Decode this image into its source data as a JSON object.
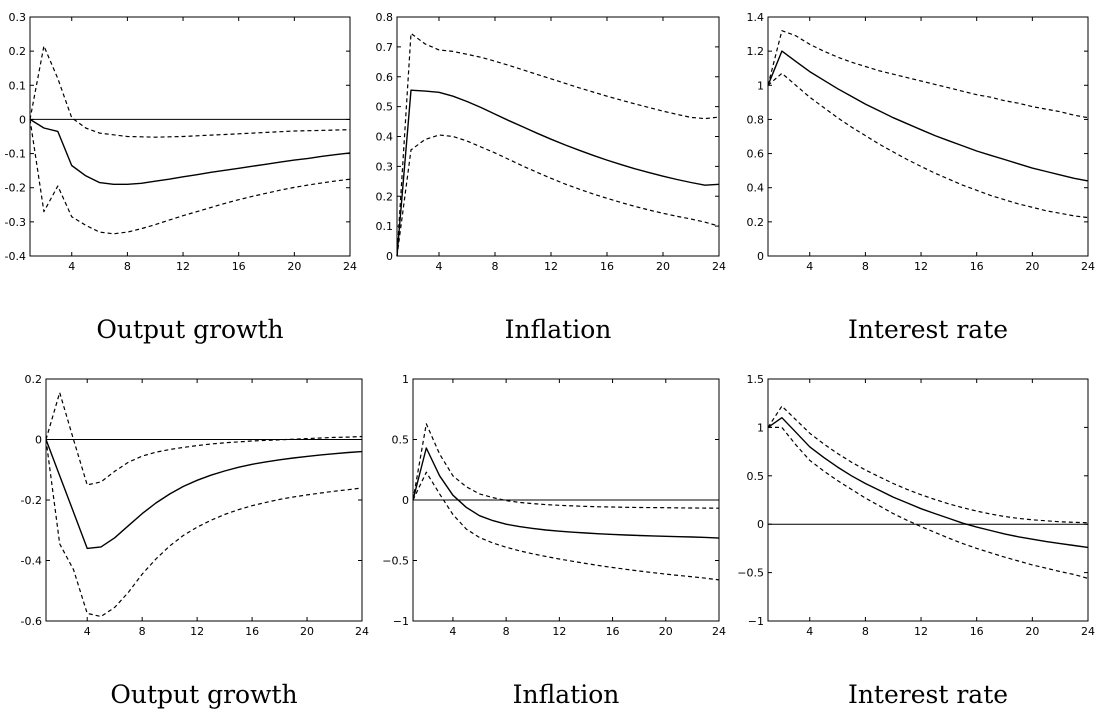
{
  "chart_data": [
    {
      "type": "line",
      "title": "Output growth",
      "xlim": [
        1,
        24
      ],
      "ylim": [
        -0.4,
        0.3
      ],
      "xticks": [
        4,
        8,
        12,
        16,
        20,
        24
      ],
      "yticks": [
        -0.4,
        -0.3,
        -0.2,
        -0.1,
        0,
        0.1,
        0.2,
        0.3
      ],
      "ytick_labels": [
        "-0.4",
        "-0.3",
        "-0.2",
        "-0.1",
        "0",
        "0.1",
        "0.2",
        "0.3"
      ],
      "zero_line": true,
      "x": [
        1,
        2,
        3,
        4,
        5,
        6,
        7,
        8,
        9,
        10,
        11,
        12,
        13,
        14,
        15,
        16,
        17,
        18,
        19,
        20,
        21,
        22,
        23,
        24
      ],
      "series": [
        {
          "style": "solid",
          "values": [
            0,
            -0.025,
            -0.035,
            -0.135,
            -0.165,
            -0.185,
            -0.19,
            -0.19,
            -0.187,
            -0.181,
            -0.175,
            -0.168,
            -0.162,
            -0.155,
            -0.149,
            -0.143,
            -0.137,
            -0.131,
            -0.125,
            -0.119,
            -0.114,
            -0.108,
            -0.103,
            -0.098
          ]
        },
        {
          "style": "dashed",
          "values": [
            0,
            0.215,
            0.12,
            0.005,
            -0.025,
            -0.04,
            -0.045,
            -0.05,
            -0.051,
            -0.052,
            -0.051,
            -0.05,
            -0.048,
            -0.046,
            -0.044,
            -0.042,
            -0.04,
            -0.038,
            -0.036,
            -0.034,
            -0.033,
            -0.032,
            -0.031,
            -0.03
          ]
        },
        {
          "style": "dashed",
          "values": [
            0,
            -0.27,
            -0.195,
            -0.285,
            -0.31,
            -0.33,
            -0.335,
            -0.33,
            -0.32,
            -0.308,
            -0.295,
            -0.282,
            -0.27,
            -0.258,
            -0.246,
            -0.235,
            -0.225,
            -0.216,
            -0.207,
            -0.199,
            -0.192,
            -0.186,
            -0.18,
            -0.175
          ]
        }
      ]
    },
    {
      "type": "line",
      "title": "Inflation",
      "xlim": [
        1,
        24
      ],
      "ylim": [
        0,
        0.8
      ],
      "xticks": [
        4,
        8,
        12,
        16,
        20,
        24
      ],
      "yticks": [
        0,
        0.1,
        0.2,
        0.3,
        0.4,
        0.5,
        0.6,
        0.7,
        0.8
      ],
      "ytick_labels": [
        "0",
        "0.1",
        "0.2",
        "0.3",
        "0.4",
        "0.5",
        "0.6",
        "0.7",
        "0.8"
      ],
      "zero_line": false,
      "x": [
        1,
        2,
        3,
        4,
        5,
        6,
        7,
        8,
        9,
        10,
        11,
        12,
        13,
        14,
        15,
        16,
        17,
        18,
        19,
        20,
        21,
        22,
        23,
        24
      ],
      "series": [
        {
          "style": "solid",
          "values": [
            0,
            0.555,
            0.552,
            0.548,
            0.535,
            0.517,
            0.497,
            0.475,
            0.453,
            0.432,
            0.411,
            0.391,
            0.372,
            0.354,
            0.337,
            0.321,
            0.306,
            0.292,
            0.279,
            0.267,
            0.256,
            0.246,
            0.237,
            0.24
          ]
        },
        {
          "style": "dashed",
          "values": [
            0,
            0.745,
            0.71,
            0.69,
            0.685,
            0.675,
            0.665,
            0.652,
            0.638,
            0.623,
            0.608,
            0.593,
            0.578,
            0.563,
            0.549,
            0.535,
            0.522,
            0.509,
            0.497,
            0.485,
            0.474,
            0.464,
            0.46,
            0.465
          ]
        },
        {
          "style": "dashed",
          "values": [
            0,
            0.355,
            0.39,
            0.405,
            0.4,
            0.385,
            0.365,
            0.345,
            0.323,
            0.301,
            0.28,
            0.26,
            0.241,
            0.224,
            0.208,
            0.193,
            0.179,
            0.166,
            0.154,
            0.143,
            0.133,
            0.124,
            0.113,
            0.1
          ]
        }
      ]
    },
    {
      "type": "line",
      "title": "Interest rate",
      "xlim": [
        1,
        24
      ],
      "ylim": [
        0,
        1.4
      ],
      "xticks": [
        4,
        8,
        12,
        16,
        20,
        24
      ],
      "yticks": [
        0,
        0.2,
        0.4,
        0.6,
        0.8,
        1,
        1.2,
        1.4
      ],
      "ytick_labels": [
        "0",
        "0.2",
        "0.4",
        "0.6",
        "0.8",
        "1",
        "1.2",
        "1.4"
      ],
      "zero_line": false,
      "x": [
        1,
        2,
        3,
        4,
        5,
        6,
        7,
        8,
        9,
        10,
        11,
        12,
        13,
        14,
        15,
        16,
        17,
        18,
        19,
        20,
        21,
        22,
        23,
        24
      ],
      "series": [
        {
          "style": "solid",
          "values": [
            1,
            1.2,
            1.14,
            1.08,
            1.03,
            0.98,
            0.935,
            0.89,
            0.85,
            0.81,
            0.775,
            0.74,
            0.705,
            0.675,
            0.645,
            0.615,
            0.59,
            0.565,
            0.54,
            0.515,
            0.495,
            0.475,
            0.455,
            0.44
          ]
        },
        {
          "style": "dashed",
          "values": [
            1,
            1.32,
            1.29,
            1.24,
            1.2,
            1.165,
            1.135,
            1.11,
            1.085,
            1.065,
            1.045,
            1.025,
            1.005,
            0.985,
            0.965,
            0.945,
            0.93,
            0.91,
            0.895,
            0.875,
            0.86,
            0.845,
            0.825,
            0.81
          ]
        },
        {
          "style": "dashed",
          "values": [
            1,
            1.07,
            1.0,
            0.93,
            0.87,
            0.81,
            0.755,
            0.705,
            0.655,
            0.61,
            0.565,
            0.525,
            0.485,
            0.45,
            0.415,
            0.385,
            0.355,
            0.33,
            0.305,
            0.285,
            0.265,
            0.25,
            0.235,
            0.225
          ]
        }
      ]
    },
    {
      "type": "line",
      "title": "Output growth",
      "xlim": [
        1,
        24
      ],
      "ylim": [
        -0.6,
        0.2
      ],
      "xticks": [
        4,
        8,
        12,
        16,
        20,
        24
      ],
      "yticks": [
        -0.6,
        -0.4,
        -0.2,
        0,
        0.2
      ],
      "ytick_labels": [
        "-0.6",
        "-0.4",
        "-0.2",
        "0",
        "0.2"
      ],
      "zero_line": true,
      "x": [
        1,
        2,
        3,
        4,
        5,
        6,
        7,
        8,
        9,
        10,
        11,
        12,
        13,
        14,
        15,
        16,
        17,
        18,
        19,
        20,
        21,
        22,
        23,
        24
      ],
      "series": [
        {
          "style": "solid",
          "values": [
            0,
            -0.12,
            -0.24,
            -0.36,
            -0.355,
            -0.325,
            -0.285,
            -0.245,
            -0.21,
            -0.18,
            -0.155,
            -0.135,
            -0.118,
            -0.104,
            -0.092,
            -0.082,
            -0.074,
            -0.067,
            -0.061,
            -0.056,
            -0.051,
            -0.047,
            -0.043,
            -0.04
          ]
        },
        {
          "style": "dashed",
          "values": [
            0,
            0.155,
            0.0,
            -0.15,
            -0.14,
            -0.105,
            -0.075,
            -0.055,
            -0.042,
            -0.033,
            -0.026,
            -0.02,
            -0.015,
            -0.011,
            -0.008,
            -0.005,
            -0.003,
            -0.001,
            0.001,
            0.003,
            0.005,
            0.007,
            0.008,
            0.01
          ]
        },
        {
          "style": "dashed",
          "values": [
            0,
            -0.345,
            -0.43,
            -0.575,
            -0.585,
            -0.555,
            -0.505,
            -0.445,
            -0.395,
            -0.352,
            -0.317,
            -0.29,
            -0.267,
            -0.248,
            -0.232,
            -0.219,
            -0.208,
            -0.198,
            -0.19,
            -0.183,
            -0.177,
            -0.171,
            -0.166,
            -0.16
          ]
        }
      ]
    },
    {
      "type": "line",
      "title": "Inflation",
      "xlim": [
        1,
        24
      ],
      "ylim": [
        -1,
        1
      ],
      "xticks": [
        4,
        8,
        12,
        16,
        20,
        24
      ],
      "yticks": [
        -1,
        -0.5,
        0,
        0.5,
        1
      ],
      "ytick_labels": [
        "−1",
        "−0.5",
        "0",
        "0.5",
        "1"
      ],
      "zero_line": true,
      "x": [
        1,
        2,
        3,
        4,
        5,
        6,
        7,
        8,
        9,
        10,
        11,
        12,
        13,
        14,
        15,
        16,
        17,
        18,
        19,
        20,
        21,
        22,
        23,
        24
      ],
      "series": [
        {
          "style": "solid",
          "values": [
            0,
            0.43,
            0.2,
            0.04,
            -0.06,
            -0.13,
            -0.17,
            -0.2,
            -0.22,
            -0.235,
            -0.248,
            -0.258,
            -0.266,
            -0.273,
            -0.279,
            -0.284,
            -0.289,
            -0.293,
            -0.297,
            -0.3,
            -0.303,
            -0.306,
            -0.309,
            -0.315
          ]
        },
        {
          "style": "dashed",
          "values": [
            0,
            0.63,
            0.38,
            0.2,
            0.11,
            0.05,
            0.02,
            -0.005,
            -0.02,
            -0.03,
            -0.038,
            -0.044,
            -0.049,
            -0.053,
            -0.056,
            -0.058,
            -0.06,
            -0.062,
            -0.063,
            -0.064,
            -0.065,
            -0.066,
            -0.067,
            -0.068
          ]
        },
        {
          "style": "dashed",
          "values": [
            0,
            0.23,
            0.05,
            -0.12,
            -0.24,
            -0.31,
            -0.355,
            -0.39,
            -0.42,
            -0.445,
            -0.467,
            -0.488,
            -0.507,
            -0.525,
            -0.542,
            -0.558,
            -0.573,
            -0.587,
            -0.6,
            -0.612,
            -0.624,
            -0.635,
            -0.646,
            -0.66
          ]
        }
      ]
    },
    {
      "type": "line",
      "title": "Interest rate",
      "xlim": [
        1,
        24
      ],
      "ylim": [
        -1,
        1.5
      ],
      "xticks": [
        4,
        8,
        12,
        16,
        20,
        24
      ],
      "yticks": [
        -1,
        -0.5,
        0,
        0.5,
        1,
        1.5
      ],
      "ytick_labels": [
        "−1",
        "−0.5",
        "0",
        "0.5",
        "1",
        "1.5"
      ],
      "zero_line": true,
      "x": [
        1,
        2,
        3,
        4,
        5,
        6,
        7,
        8,
        9,
        10,
        11,
        12,
        13,
        14,
        15,
        16,
        17,
        18,
        19,
        20,
        21,
        22,
        23,
        24
      ],
      "series": [
        {
          "style": "solid",
          "values": [
            1,
            1.1,
            0.95,
            0.8,
            0.69,
            0.59,
            0.5,
            0.42,
            0.35,
            0.28,
            0.22,
            0.16,
            0.11,
            0.06,
            0.01,
            -0.03,
            -0.065,
            -0.1,
            -0.13,
            -0.155,
            -0.18,
            -0.2,
            -0.22,
            -0.24
          ]
        },
        {
          "style": "dashed",
          "values": [
            1,
            1.22,
            1.08,
            0.94,
            0.83,
            0.73,
            0.64,
            0.56,
            0.49,
            0.42,
            0.36,
            0.305,
            0.255,
            0.21,
            0.17,
            0.135,
            0.105,
            0.08,
            0.06,
            0.045,
            0.035,
            0.025,
            0.02,
            0.015
          ]
        },
        {
          "style": "dashed",
          "values": [
            1,
            1.0,
            0.82,
            0.66,
            0.55,
            0.45,
            0.36,
            0.27,
            0.19,
            0.11,
            0.04,
            -0.025,
            -0.085,
            -0.145,
            -0.2,
            -0.25,
            -0.295,
            -0.34,
            -0.38,
            -0.42,
            -0.455,
            -0.49,
            -0.52,
            -0.56
          ]
        }
      ]
    }
  ]
}
